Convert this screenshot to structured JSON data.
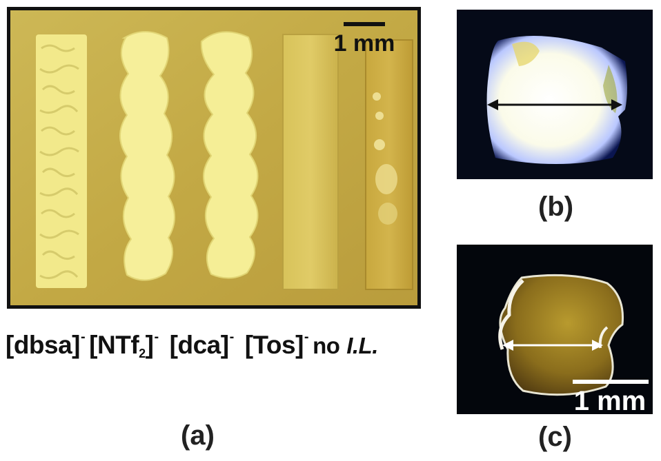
{
  "figure": {
    "panel_a": {
      "scale_bar": "1 mm",
      "labels": {
        "dbsa": "[dbsa]",
        "ntf": "[NTf",
        "ntf_sub": "2",
        "ntf_close": "]",
        "dca": "[dca]",
        "tos": "[Tos]",
        "charge": "-",
        "no": "no",
        "il": "I.L."
      },
      "letter": "(a)"
    },
    "panel_b": {
      "letter": "(b)"
    },
    "panel_c": {
      "scale_bar": "1 mm",
      "letter": "(c)"
    },
    "colors": {
      "background": "#c9b24c",
      "frame": "#111111",
      "sample_yellow": "#f3ec8a",
      "dark_bg": "#050a18"
    }
  }
}
